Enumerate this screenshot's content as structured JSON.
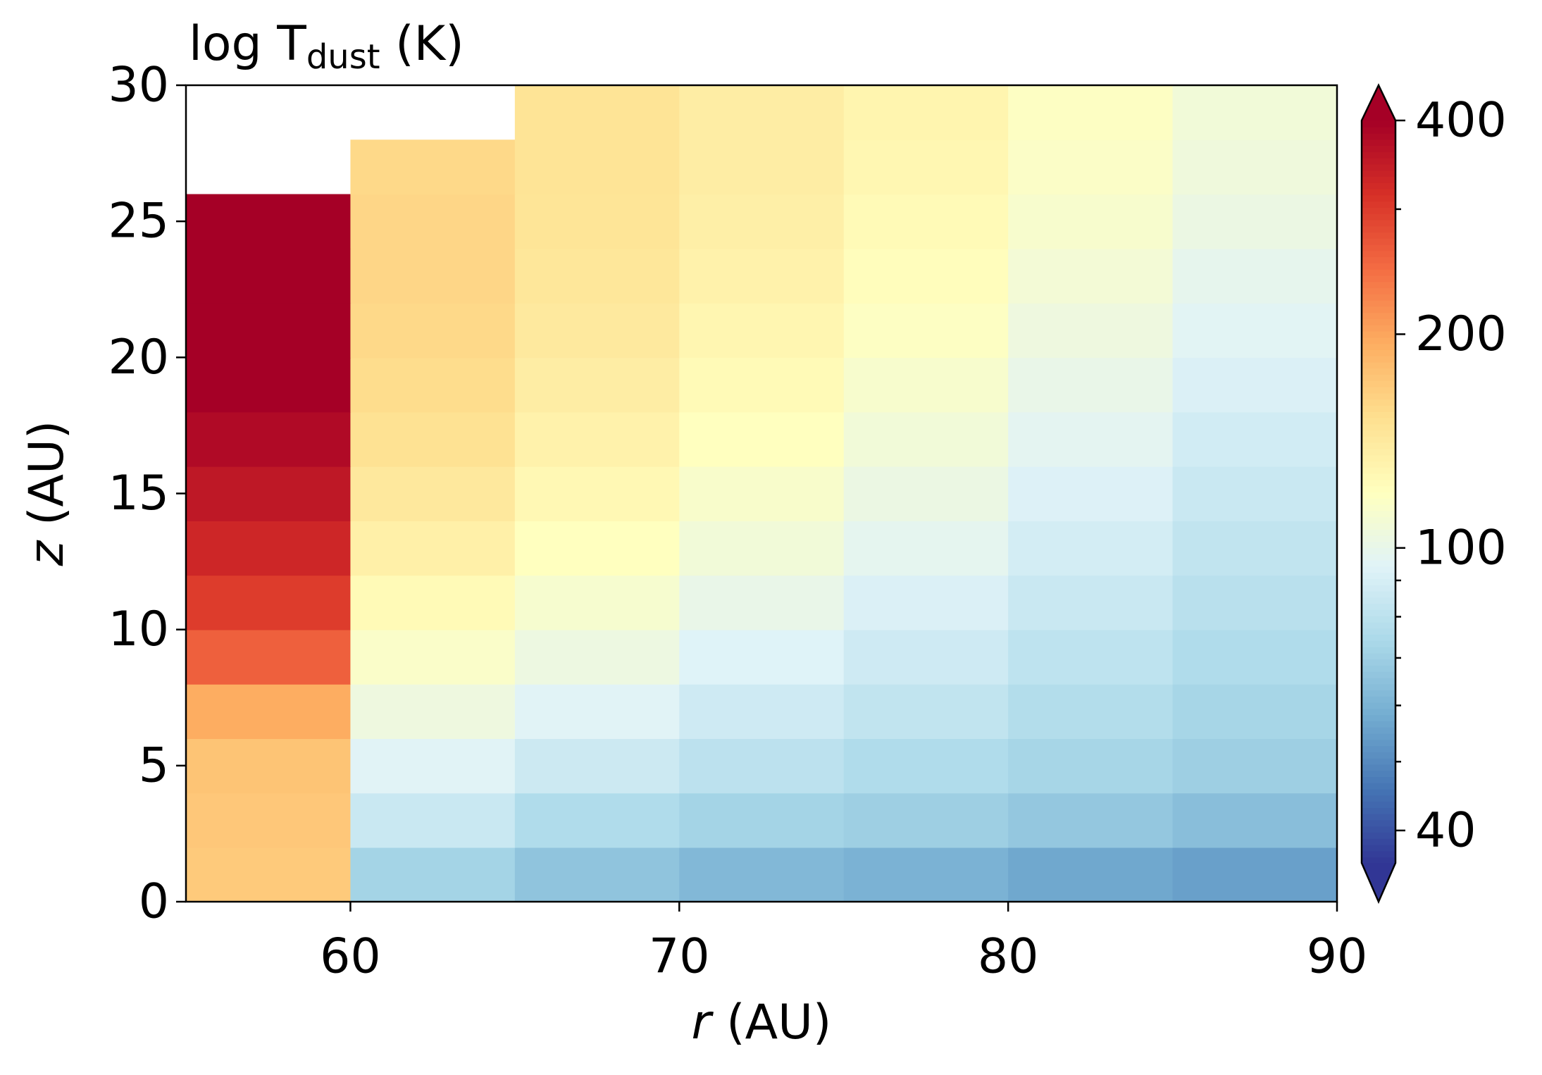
{
  "chart_data": {
    "type": "heatmap",
    "title": {
      "main": "log T",
      "sub": "dust",
      "end": " (K)"
    },
    "xlabel": {
      "var": "r",
      "unit": " (AU)"
    },
    "ylabel": {
      "var": "z",
      "unit": " (AU)"
    },
    "x": [
      57.5,
      62.5,
      67.5,
      72.5,
      77.5,
      82.5,
      87.5
    ],
    "y": [
      1,
      3,
      5,
      7,
      9,
      11,
      13,
      15,
      17,
      19,
      21,
      23,
      25,
      27,
      29
    ],
    "values": [
      [
        170,
        72,
        66,
        62,
        60,
        57,
        55
      ],
      [
        172,
        85,
        76,
        72,
        70,
        67,
        64
      ],
      [
        175,
        95,
        86,
        80,
        76,
        73,
        70
      ],
      [
        195,
        105,
        95,
        87,
        82,
        77,
        73
      ],
      [
        260,
        115,
        104,
        94,
        87,
        81,
        76
      ],
      [
        300,
        125,
        112,
        101,
        92,
        85,
        79
      ],
      [
        330,
        135,
        120,
        108,
        98,
        89,
        82
      ],
      [
        355,
        143,
        127,
        114,
        103,
        93,
        85
      ],
      [
        380,
        150,
        133,
        120,
        108,
        97,
        88
      ],
      [
        400,
        155,
        138,
        125,
        113,
        101,
        92
      ],
      [
        420,
        158,
        142,
        129,
        118,
        105,
        96
      ],
      [
        420,
        160,
        145,
        133,
        122,
        109,
        99
      ],
      [
        420,
        160,
        147,
        136,
        125,
        113,
        103
      ],
      [
        null,
        158,
        148,
        138,
        128,
        116,
        106
      ],
      [
        null,
        null,
        148,
        138,
        130,
        118,
        108
      ]
    ],
    "xlim": [
      55,
      90
    ],
    "xticks": [
      60,
      70,
      80,
      90
    ],
    "ylim": [
      0,
      30
    ],
    "yticks": [
      0,
      5,
      10,
      15,
      20,
      25,
      30
    ],
    "colormap": "RdYlBu_r",
    "color_scale": "log",
    "clim": [
      36,
      400
    ],
    "cbar_ticks": [
      40,
      100,
      200,
      400
    ],
    "cbar_minor_ticks": [
      50,
      60,
      70,
      80,
      90,
      300
    ],
    "cbar_extend": "both"
  }
}
